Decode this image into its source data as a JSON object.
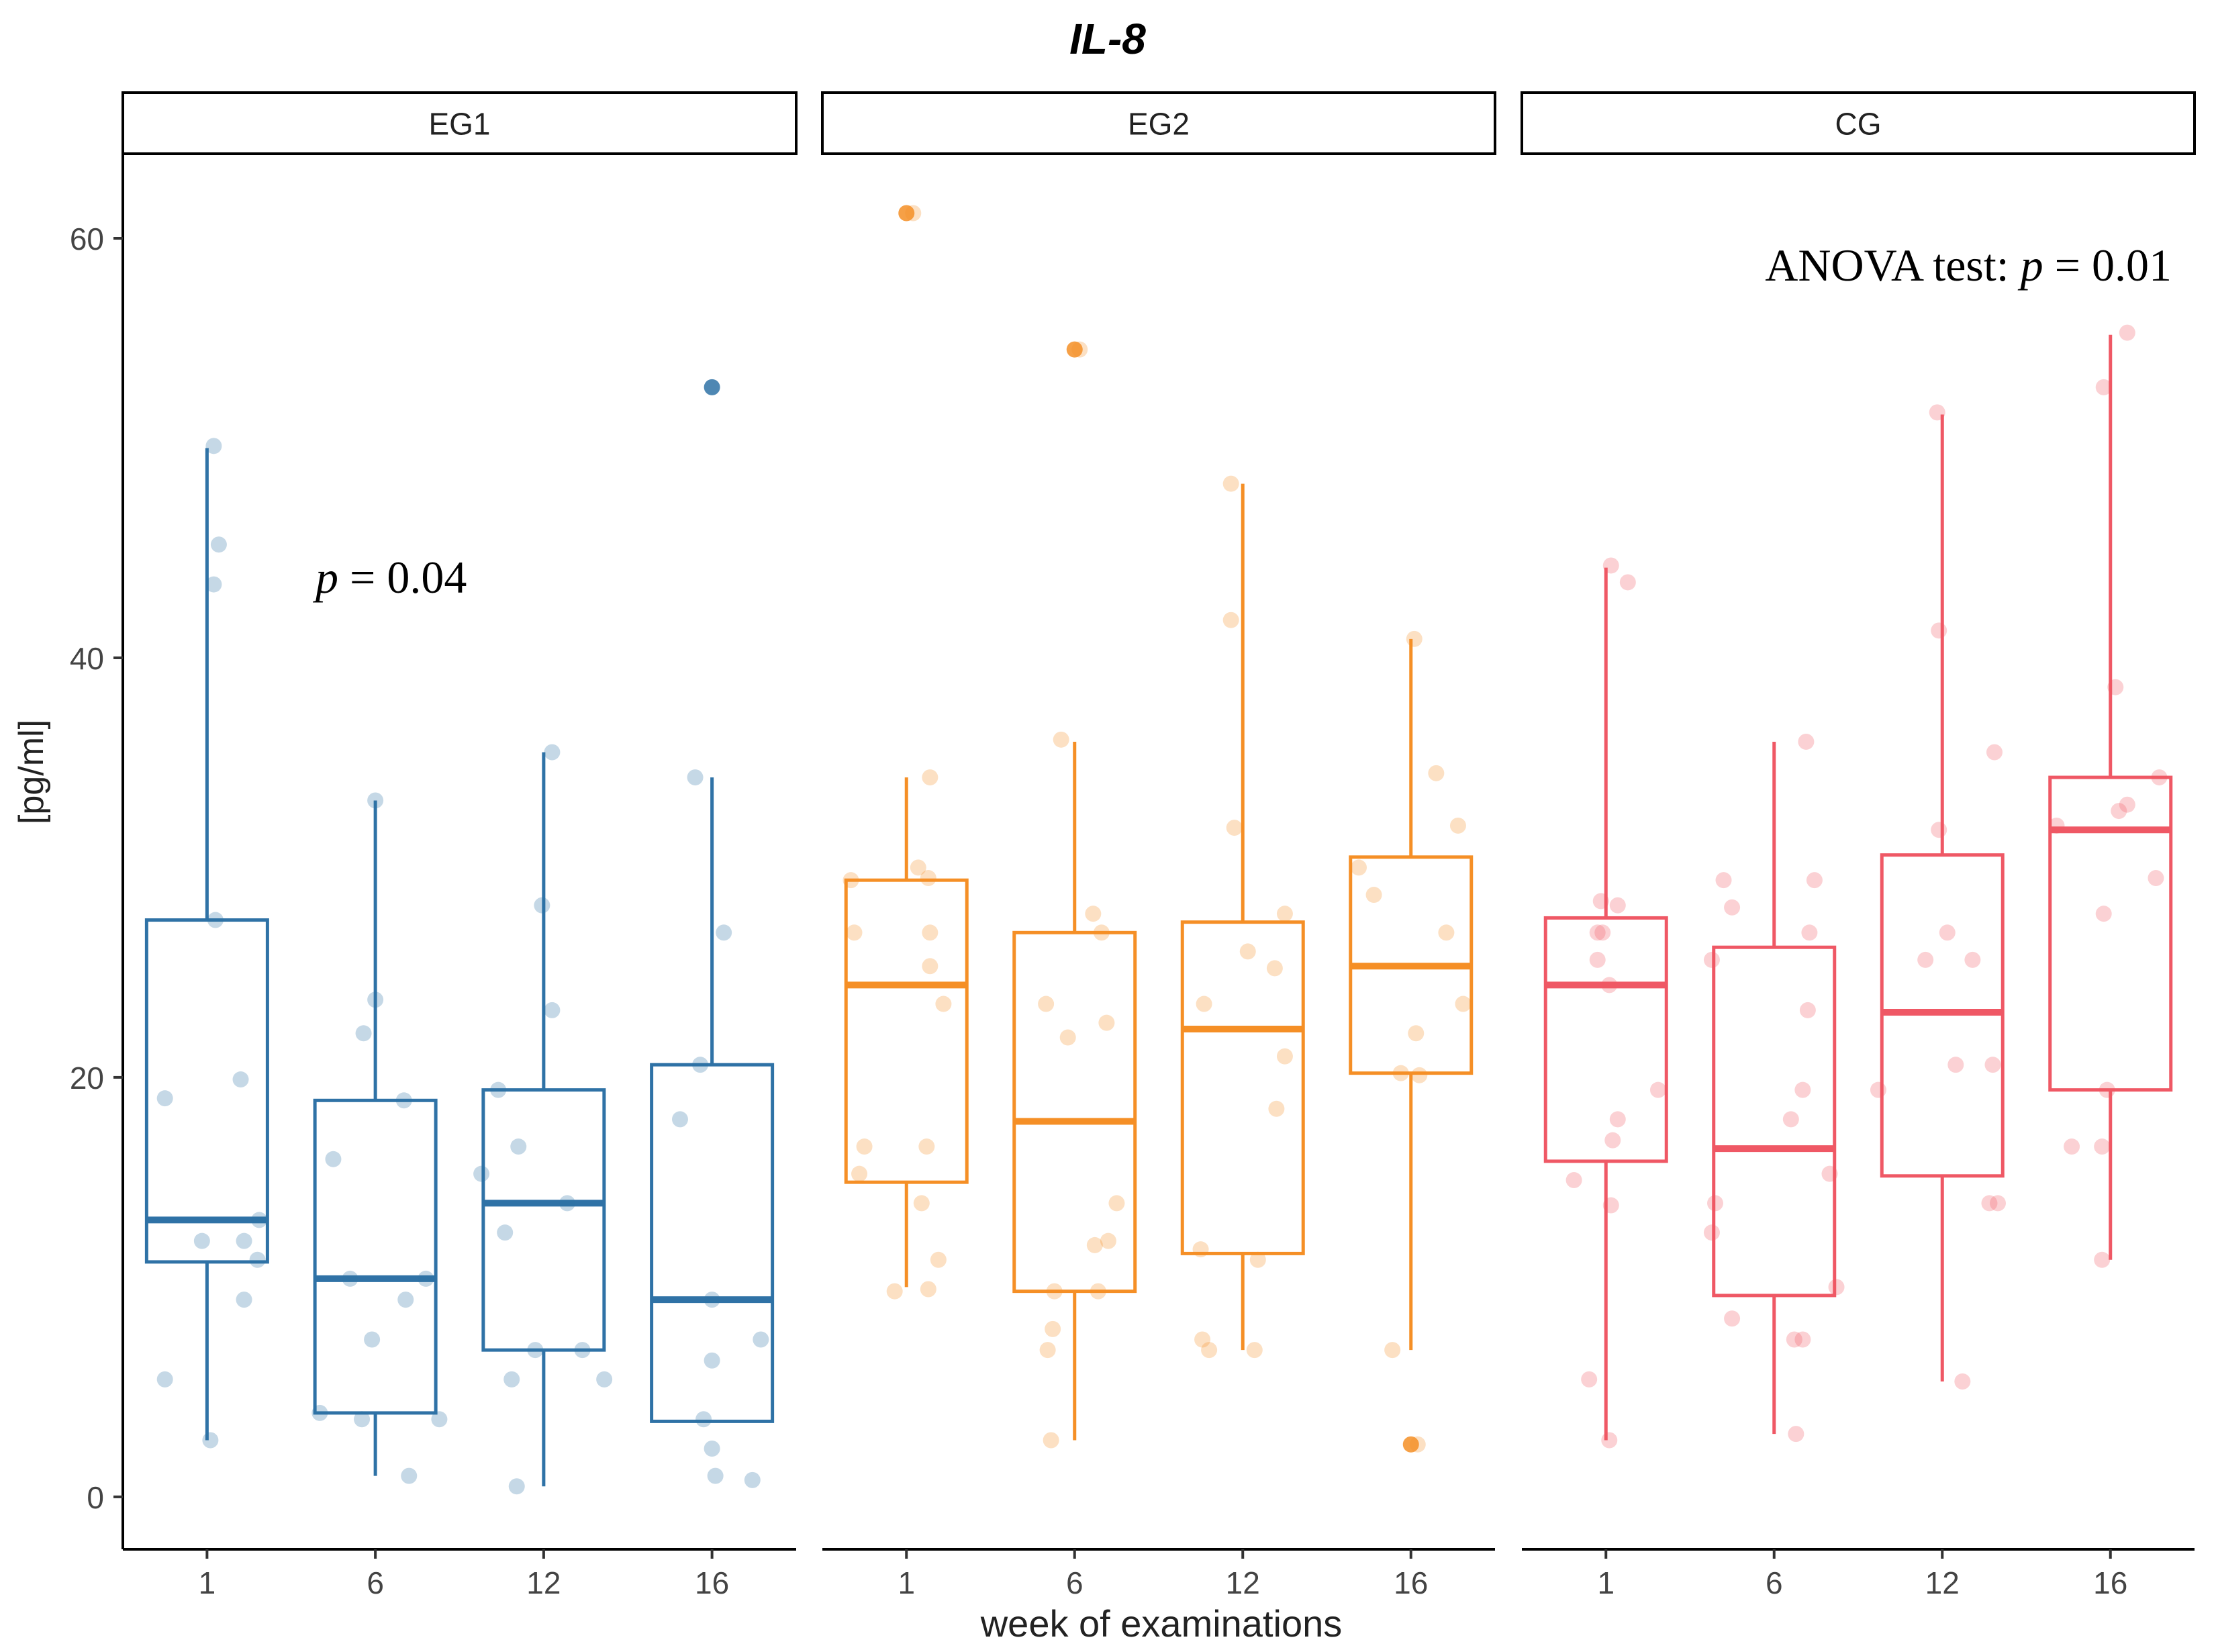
{
  "chart_data": {
    "type": "box",
    "title": "IL-8",
    "xlabel": "week of examinations",
    "ylabel": "[pg/ml]",
    "ylim": [
      -2.5,
      64
    ],
    "y_ticks": [
      0,
      20,
      40,
      60
    ],
    "categories": [
      "1",
      "6",
      "12",
      "16"
    ],
    "global_annotation": {
      "prefix": "ANOVA test: ",
      "p_symbol": "p",
      "suffix": " = 0.01"
    },
    "colors": {
      "EG1": "#2f72a6",
      "EG2": "#f58f26",
      "CG": "#ef5865"
    },
    "panels": [
      {
        "name": "EG1",
        "annotation": {
          "p_symbol": "p",
          "suffix": " = 0.04"
        },
        "boxes": [
          {
            "week": "1",
            "q1": 11.2,
            "median": 13.2,
            "q3": 27.5,
            "lo": 2.7,
            "hi": 50.0
          },
          {
            "week": "6",
            "q1": 4.0,
            "median": 10.4,
            "q3": 18.9,
            "lo": 1.0,
            "hi": 33.2
          },
          {
            "week": "12",
            "q1": 7.0,
            "median": 14.0,
            "q3": 19.4,
            "lo": 0.5,
            "hi": 35.5
          },
          {
            "week": "16",
            "q1": 3.6,
            "median": 9.4,
            "q3": 20.6,
            "lo": 3.6,
            "hi": 34.3
          }
        ],
        "outliers": [
          {
            "week": "16",
            "y": 52.9
          }
        ],
        "points": [
          {
            "week": "1",
            "dx": -0.25,
            "y": 19.0
          },
          {
            "week": "1",
            "dx": -0.25,
            "y": 5.6
          },
          {
            "week": "1",
            "dx": 0.04,
            "y": 50.1
          },
          {
            "week": "1",
            "dx": 0.07,
            "y": 45.4
          },
          {
            "week": "1",
            "dx": 0.04,
            "y": 43.5
          },
          {
            "week": "1",
            "dx": 0.05,
            "y": 27.5
          },
          {
            "week": "1",
            "dx": 0.2,
            "y": 19.9
          },
          {
            "week": "1",
            "dx": 0.31,
            "y": 13.2
          },
          {
            "week": "1",
            "dx": 0.22,
            "y": 12.2
          },
          {
            "week": "1",
            "dx": -0.03,
            "y": 12.2
          },
          {
            "week": "1",
            "dx": 0.3,
            "y": 11.3
          },
          {
            "week": "1",
            "dx": 0.22,
            "y": 9.4
          },
          {
            "week": "1",
            "dx": 0.02,
            "y": 2.7
          },
          {
            "week": "6",
            "dx": 0.0,
            "y": 33.2
          },
          {
            "week": "6",
            "dx": 0.0,
            "y": 23.7
          },
          {
            "week": "6",
            "dx": -0.07,
            "y": 22.1
          },
          {
            "week": "6",
            "dx": 0.17,
            "y": 18.9
          },
          {
            "week": "6",
            "dx": -0.25,
            "y": 16.1
          },
          {
            "week": "6",
            "dx": -0.15,
            "y": 10.4
          },
          {
            "week": "6",
            "dx": 0.3,
            "y": 10.4
          },
          {
            "week": "6",
            "dx": 0.18,
            "y": 9.4
          },
          {
            "week": "6",
            "dx": -0.02,
            "y": 7.5
          },
          {
            "week": "6",
            "dx": -0.33,
            "y": 4.0
          },
          {
            "week": "6",
            "dx": -0.08,
            "y": 3.7
          },
          {
            "week": "6",
            "dx": 0.38,
            "y": 3.7
          },
          {
            "week": "6",
            "dx": 0.2,
            "y": 1.0
          },
          {
            "week": "12",
            "dx": 0.05,
            "y": 35.5
          },
          {
            "week": "12",
            "dx": -0.01,
            "y": 28.2
          },
          {
            "week": "12",
            "dx": 0.05,
            "y": 23.2
          },
          {
            "week": "12",
            "dx": -0.27,
            "y": 19.4
          },
          {
            "week": "12",
            "dx": -0.15,
            "y": 16.7
          },
          {
            "week": "12",
            "dx": -0.37,
            "y": 15.4
          },
          {
            "week": "12",
            "dx": -0.23,
            "y": 12.6
          },
          {
            "week": "12",
            "dx": 0.14,
            "y": 14.0
          },
          {
            "week": "12",
            "dx": -0.05,
            "y": 7.0
          },
          {
            "week": "12",
            "dx": 0.23,
            "y": 7.0
          },
          {
            "week": "12",
            "dx": -0.19,
            "y": 5.6
          },
          {
            "week": "12",
            "dx": 0.36,
            "y": 5.6
          },
          {
            "week": "12",
            "dx": -0.16,
            "y": 0.5
          },
          {
            "week": "16",
            "dx": -0.1,
            "y": 34.3
          },
          {
            "week": "16",
            "dx": 0.07,
            "y": 26.9
          },
          {
            "week": "16",
            "dx": -0.07,
            "y": 20.6
          },
          {
            "week": "16",
            "dx": -0.19,
            "y": 18.0
          },
          {
            "week": "16",
            "dx": 0.0,
            "y": 9.4
          },
          {
            "week": "16",
            "dx": 0.0,
            "y": 6.5
          },
          {
            "week": "16",
            "dx": 0.29,
            "y": 7.5
          },
          {
            "week": "16",
            "dx": -0.05,
            "y": 3.7
          },
          {
            "week": "16",
            "dx": 0.0,
            "y": 2.3
          },
          {
            "week": "16",
            "dx": 0.02,
            "y": 1.0
          },
          {
            "week": "16",
            "dx": 0.24,
            "y": 0.8
          }
        ]
      },
      {
        "name": "EG2",
        "boxes": [
          {
            "week": "1",
            "q1": 15.0,
            "median": 24.4,
            "q3": 29.4,
            "lo": 10.0,
            "hi": 34.3
          },
          {
            "week": "6",
            "q1": 9.8,
            "median": 17.9,
            "q3": 26.9,
            "lo": 2.7,
            "hi": 36.0
          },
          {
            "week": "12",
            "q1": 11.6,
            "median": 22.3,
            "q3": 27.4,
            "lo": 7.0,
            "hi": 48.3
          },
          {
            "week": "16",
            "q1": 20.2,
            "median": 25.3,
            "q3": 30.5,
            "lo": 7.0,
            "hi": 40.9
          }
        ],
        "outliers": [
          {
            "week": "1",
            "y": 61.2
          },
          {
            "week": "6",
            "y": 54.7
          },
          {
            "week": "16",
            "y": 2.5
          }
        ],
        "points": [
          {
            "week": "1",
            "dx": 0.04,
            "y": 61.2
          },
          {
            "week": "1",
            "dx": 0.14,
            "y": 34.3
          },
          {
            "week": "1",
            "dx": 0.07,
            "y": 30.0
          },
          {
            "week": "1",
            "dx": 0.13,
            "y": 29.5
          },
          {
            "week": "1",
            "dx": -0.33,
            "y": 29.4
          },
          {
            "week": "1",
            "dx": -0.31,
            "y": 26.9
          },
          {
            "week": "1",
            "dx": 0.14,
            "y": 26.9
          },
          {
            "week": "1",
            "dx": 0.14,
            "y": 25.3
          },
          {
            "week": "1",
            "dx": 0.22,
            "y": 23.5
          },
          {
            "week": "1",
            "dx": -0.25,
            "y": 16.7
          },
          {
            "week": "1",
            "dx": 0.12,
            "y": 16.7
          },
          {
            "week": "1",
            "dx": -0.28,
            "y": 15.4
          },
          {
            "week": "1",
            "dx": 0.09,
            "y": 14.0
          },
          {
            "week": "1",
            "dx": 0.19,
            "y": 11.3
          },
          {
            "week": "1",
            "dx": -0.07,
            "y": 9.8
          },
          {
            "week": "1",
            "dx": 0.13,
            "y": 9.9
          },
          {
            "week": "6",
            "dx": 0.03,
            "y": 54.7
          },
          {
            "week": "6",
            "dx": -0.08,
            "y": 36.1
          },
          {
            "week": "6",
            "dx": 0.11,
            "y": 27.8
          },
          {
            "week": "6",
            "dx": 0.16,
            "y": 26.9
          },
          {
            "week": "6",
            "dx": -0.17,
            "y": 23.5
          },
          {
            "week": "6",
            "dx": 0.19,
            "y": 22.6
          },
          {
            "week": "6",
            "dx": -0.04,
            "y": 21.9
          },
          {
            "week": "6",
            "dx": 0.25,
            "y": 14.0
          },
          {
            "week": "6",
            "dx": 0.2,
            "y": 12.2
          },
          {
            "week": "6",
            "dx": 0.12,
            "y": 12.0
          },
          {
            "week": "6",
            "dx": -0.12,
            "y": 9.8
          },
          {
            "week": "6",
            "dx": 0.14,
            "y": 9.8
          },
          {
            "week": "6",
            "dx": -0.13,
            "y": 8.0
          },
          {
            "week": "6",
            "dx": -0.16,
            "y": 7.0
          },
          {
            "week": "6",
            "dx": -0.14,
            "y": 2.7
          },
          {
            "week": "12",
            "dx": -0.07,
            "y": 48.3
          },
          {
            "week": "12",
            "dx": -0.07,
            "y": 41.8
          },
          {
            "week": "12",
            "dx": -0.05,
            "y": 31.9
          },
          {
            "week": "12",
            "dx": 0.25,
            "y": 27.8
          },
          {
            "week": "12",
            "dx": 0.03,
            "y": 26.0
          },
          {
            "week": "12",
            "dx": 0.19,
            "y": 25.2
          },
          {
            "week": "12",
            "dx": -0.23,
            "y": 23.5
          },
          {
            "week": "12",
            "dx": 0.25,
            "y": 21.0
          },
          {
            "week": "12",
            "dx": 0.2,
            "y": 18.5
          },
          {
            "week": "12",
            "dx": -0.25,
            "y": 11.8
          },
          {
            "week": "12",
            "dx": 0.09,
            "y": 11.3
          },
          {
            "week": "12",
            "dx": -0.24,
            "y": 7.5
          },
          {
            "week": "12",
            "dx": -0.2,
            "y": 7.0
          },
          {
            "week": "12",
            "dx": 0.07,
            "y": 7.0
          },
          {
            "week": "16",
            "dx": 0.02,
            "y": 40.9
          },
          {
            "week": "16",
            "dx": 0.15,
            "y": 34.5
          },
          {
            "week": "16",
            "dx": 0.28,
            "y": 32.0
          },
          {
            "week": "16",
            "dx": -0.31,
            "y": 30.0
          },
          {
            "week": "16",
            "dx": -0.22,
            "y": 28.7
          },
          {
            "week": "16",
            "dx": 0.21,
            "y": 26.9
          },
          {
            "week": "16",
            "dx": 0.31,
            "y": 23.5
          },
          {
            "week": "16",
            "dx": 0.03,
            "y": 22.1
          },
          {
            "week": "16",
            "dx": -0.06,
            "y": 20.2
          },
          {
            "week": "16",
            "dx": 0.05,
            "y": 20.1
          },
          {
            "week": "16",
            "dx": -0.11,
            "y": 7.0
          },
          {
            "week": "16",
            "dx": 0.04,
            "y": 2.5
          }
        ]
      },
      {
        "name": "CG",
        "boxes": [
          {
            "week": "1",
            "q1": 16.0,
            "median": 24.4,
            "q3": 27.6,
            "lo": 2.7,
            "hi": 44.3
          },
          {
            "week": "6",
            "q1": 9.6,
            "median": 16.6,
            "q3": 26.2,
            "lo": 3.0,
            "hi": 36.0
          },
          {
            "week": "12",
            "q1": 15.3,
            "median": 23.1,
            "q3": 30.6,
            "lo": 5.5,
            "hi": 51.6
          },
          {
            "week": "16",
            "q1": 19.4,
            "median": 31.8,
            "q3": 34.3,
            "lo": 11.3,
            "hi": 55.4
          }
        ],
        "outliers": [],
        "points": [
          {
            "week": "1",
            "dx": 0.03,
            "y": 44.4
          },
          {
            "week": "1",
            "dx": 0.13,
            "y": 43.6
          },
          {
            "week": "1",
            "dx": -0.03,
            "y": 28.4
          },
          {
            "week": "1",
            "dx": 0.07,
            "y": 28.2
          },
          {
            "week": "1",
            "dx": -0.02,
            "y": 26.9
          },
          {
            "week": "1",
            "dx": -0.05,
            "y": 26.9
          },
          {
            "week": "1",
            "dx": -0.05,
            "y": 25.6
          },
          {
            "week": "1",
            "dx": 0.02,
            "y": 24.4
          },
          {
            "week": "1",
            "dx": 0.31,
            "y": 19.4
          },
          {
            "week": "1",
            "dx": 0.07,
            "y": 18.0
          },
          {
            "week": "1",
            "dx": 0.04,
            "y": 17.0
          },
          {
            "week": "1",
            "dx": -0.19,
            "y": 15.1
          },
          {
            "week": "1",
            "dx": 0.03,
            "y": 13.9
          },
          {
            "week": "1",
            "dx": -0.1,
            "y": 5.6
          },
          {
            "week": "1",
            "dx": 0.02,
            "y": 2.7
          },
          {
            "week": "6",
            "dx": 0.19,
            "y": 36.0
          },
          {
            "week": "6",
            "dx": -0.3,
            "y": 29.4
          },
          {
            "week": "6",
            "dx": 0.24,
            "y": 29.4
          },
          {
            "week": "6",
            "dx": -0.25,
            "y": 28.1
          },
          {
            "week": "6",
            "dx": 0.21,
            "y": 26.9
          },
          {
            "week": "6",
            "dx": -0.37,
            "y": 25.6
          },
          {
            "week": "6",
            "dx": 0.2,
            "y": 23.2
          },
          {
            "week": "6",
            "dx": 0.17,
            "y": 19.4
          },
          {
            "week": "6",
            "dx": 0.1,
            "y": 18.0
          },
          {
            "week": "6",
            "dx": 0.33,
            "y": 15.4
          },
          {
            "week": "6",
            "dx": -0.35,
            "y": 14.0
          },
          {
            "week": "6",
            "dx": -0.37,
            "y": 12.6
          },
          {
            "week": "6",
            "dx": 0.37,
            "y": 10.0
          },
          {
            "week": "6",
            "dx": -0.25,
            "y": 8.5
          },
          {
            "week": "6",
            "dx": 0.17,
            "y": 7.5
          },
          {
            "week": "6",
            "dx": 0.12,
            "y": 7.5
          },
          {
            "week": "6",
            "dx": 0.13,
            "y": 3.0
          },
          {
            "week": "12",
            "dx": -0.03,
            "y": 51.7
          },
          {
            "week": "12",
            "dx": -0.02,
            "y": 41.3
          },
          {
            "week": "12",
            "dx": 0.31,
            "y": 35.5
          },
          {
            "week": "12",
            "dx": -0.02,
            "y": 31.8
          },
          {
            "week": "12",
            "dx": 0.03,
            "y": 26.9
          },
          {
            "week": "12",
            "dx": -0.1,
            "y": 25.6
          },
          {
            "week": "12",
            "dx": 0.18,
            "y": 25.6
          },
          {
            "week": "12",
            "dx": 0.08,
            "y": 20.6
          },
          {
            "week": "12",
            "dx": 0.3,
            "y": 20.6
          },
          {
            "week": "12",
            "dx": -0.38,
            "y": 19.4
          },
          {
            "week": "12",
            "dx": 0.28,
            "y": 14.0
          },
          {
            "week": "12",
            "dx": 0.33,
            "y": 14.0
          },
          {
            "week": "12",
            "dx": 0.12,
            "y": 5.5
          },
          {
            "week": "16",
            "dx": 0.1,
            "y": 55.5
          },
          {
            "week": "16",
            "dx": -0.04,
            "y": 52.9
          },
          {
            "week": "16",
            "dx": 0.03,
            "y": 38.6
          },
          {
            "week": "16",
            "dx": 0.29,
            "y": 34.3
          },
          {
            "week": "16",
            "dx": 0.1,
            "y": 33.0
          },
          {
            "week": "16",
            "dx": 0.05,
            "y": 32.7
          },
          {
            "week": "16",
            "dx": -0.32,
            "y": 32.0
          },
          {
            "week": "16",
            "dx": 0.27,
            "y": 29.5
          },
          {
            "week": "16",
            "dx": -0.04,
            "y": 27.8
          },
          {
            "week": "16",
            "dx": -0.02,
            "y": 19.4
          },
          {
            "week": "16",
            "dx": -0.23,
            "y": 16.7
          },
          {
            "week": "16",
            "dx": -0.05,
            "y": 16.7
          },
          {
            "week": "16",
            "dx": -0.05,
            "y": 11.3
          }
        ]
      }
    ]
  }
}
